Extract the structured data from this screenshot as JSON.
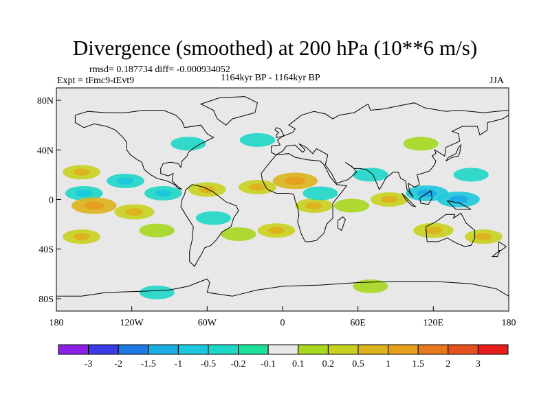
{
  "title": "Divergence (smoothed) at 200 hPa (10**6 m/s)",
  "stats": "rmsd= 0.187734 diff= -0.000934052",
  "expt": "Expt = tFmc9-tEvt9",
  "period": "1164kyr BP - 1164kyr BP",
  "season": "JJA",
  "axes": {
    "x_ticks": [
      {
        "lon": -180,
        "label": "180"
      },
      {
        "lon": -120,
        "label": "120W"
      },
      {
        "lon": -60,
        "label": "60W"
      },
      {
        "lon": 0,
        "label": "0"
      },
      {
        "lon": 60,
        "label": "60E"
      },
      {
        "lon": 120,
        "label": "120E"
      },
      {
        "lon": 180,
        "label": "180"
      }
    ],
    "y_ticks": [
      {
        "lat": 80,
        "label": "80N"
      },
      {
        "lat": 40,
        "label": "40N"
      },
      {
        "lat": 0,
        "label": "0"
      },
      {
        "lat": -40,
        "label": "40S"
      },
      {
        "lat": -80,
        "label": "80S"
      }
    ],
    "lon_range": [
      -180,
      180
    ],
    "lat_range": [
      -90,
      90
    ]
  },
  "colorbar": {
    "colors": [
      "#8b1fe6",
      "#3a3ae6",
      "#1e78e6",
      "#1eaee6",
      "#1ec8dc",
      "#1ed7c8",
      "#1ee09a",
      "#e8e8e8",
      "#a6d81e",
      "#c8d21e",
      "#dcb41e",
      "#e6a01e",
      "#e6781e",
      "#e6501e",
      "#e61e1e"
    ],
    "labels": [
      "-3",
      "-2",
      "-1.5",
      "-1",
      "-0.5",
      "-0.2",
      "-0.1",
      "0.1",
      "0.2",
      "0.5",
      "1",
      "1.5",
      "2",
      "3"
    ]
  },
  "chart_data": {
    "type": "heatmap",
    "title": "Divergence (smoothed) at 200 hPa (10**6 m/s)",
    "variable": "divergence difference",
    "units": "10**6 m/s",
    "season": "JJA",
    "levels": [
      -3,
      -2,
      -1.5,
      -1,
      -0.5,
      -0.2,
      -0.1,
      0.1,
      0.2,
      0.5,
      1,
      1.5,
      2,
      3
    ],
    "features": [
      {
        "lon": -160,
        "lat": 22,
        "value": 0.3
      },
      {
        "lon": -158,
        "lat": 5,
        "value": -0.3
      },
      {
        "lon": -150,
        "lat": -5,
        "value": 0.6
      },
      {
        "lon": -160,
        "lat": -30,
        "value": 0.3
      },
      {
        "lon": -125,
        "lat": 15,
        "value": -0.3
      },
      {
        "lon": -118,
        "lat": -10,
        "value": 0.4
      },
      {
        "lon": -100,
        "lat": -25,
        "value": 0.2
      },
      {
        "lon": -95,
        "lat": 5,
        "value": -0.3
      },
      {
        "lon": -60,
        "lat": 8,
        "value": 0.3
      },
      {
        "lon": -55,
        "lat": -15,
        "value": -0.2
      },
      {
        "lon": -35,
        "lat": -28,
        "value": 0.2
      },
      {
        "lon": -20,
        "lat": 10,
        "value": 0.3
      },
      {
        "lon": 10,
        "lat": 15,
        "value": 0.6
      },
      {
        "lon": 25,
        "lat": -5,
        "value": 0.3
      },
      {
        "lon": 30,
        "lat": 5,
        "value": -0.2
      },
      {
        "lon": 55,
        "lat": -5,
        "value": 0.2
      },
      {
        "lon": 70,
        "lat": 20,
        "value": -0.2
      },
      {
        "lon": 85,
        "lat": 0,
        "value": 0.3
      },
      {
        "lon": 115,
        "lat": 5,
        "value": -0.5
      },
      {
        "lon": 140,
        "lat": 0,
        "value": -0.5
      },
      {
        "lon": 120,
        "lat": -25,
        "value": 0.4
      },
      {
        "lon": 160,
        "lat": -30,
        "value": 0.3
      },
      {
        "lon": -5,
        "lat": -25,
        "value": 0.3
      },
      {
        "lon": -20,
        "lat": 48,
        "value": -0.2
      },
      {
        "lon": -75,
        "lat": 45,
        "value": -0.2
      },
      {
        "lon": 110,
        "lat": 45,
        "value": 0.2
      },
      {
        "lon": 150,
        "lat": 20,
        "value": -0.2
      },
      {
        "lon": -100,
        "lat": -75,
        "value": -0.2
      },
      {
        "lon": 70,
        "lat": -70,
        "value": 0.2
      }
    ]
  }
}
